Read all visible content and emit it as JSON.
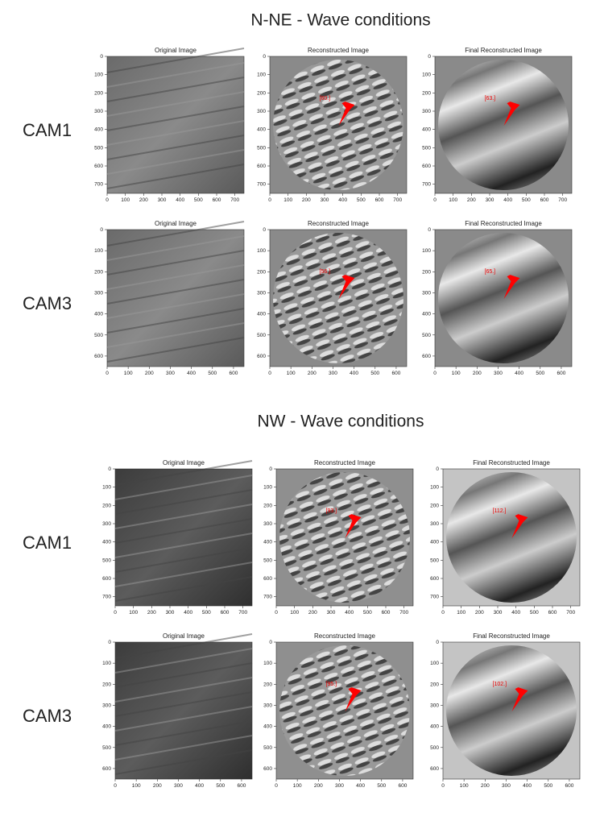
{
  "sections": [
    {
      "title": "N-NE - Wave conditions",
      "rows": [
        {
          "label": "CAM1",
          "panels": [
            {
              "title": "Original Image",
              "xticks": [
                0,
                100,
                200,
                300,
                400,
                500,
                600,
                700
              ],
              "yticks": [
                0,
                100,
                200,
                300,
                400,
                500,
                600,
                700
              ]
            },
            {
              "title": "Reconstructed Image",
              "annotation": "[60.]",
              "xticks": [
                0,
                100,
                200,
                300,
                400,
                500,
                600,
                700
              ],
              "yticks": [
                0,
                100,
                200,
                300,
                400,
                500,
                600,
                700
              ]
            },
            {
              "title": "Final Reconstructed Image",
              "annotation": "[63.]",
              "xticks": [
                0,
                100,
                200,
                300,
                400,
                500,
                600,
                700
              ],
              "yticks": [
                0,
                100,
                200,
                300,
                400,
                500,
                600,
                700
              ]
            }
          ]
        },
        {
          "label": "CAM3",
          "panels": [
            {
              "title": "Original Image",
              "xticks": [
                0,
                100,
                200,
                300,
                400,
                500,
                600
              ],
              "yticks": [
                0,
                100,
                200,
                300,
                400,
                500,
                600
              ]
            },
            {
              "title": "Reconstructed Image",
              "annotation": "[56.]",
              "xticks": [
                0,
                100,
                200,
                300,
                400,
                500,
                600
              ],
              "yticks": [
                0,
                100,
                200,
                300,
                400,
                500,
                600
              ]
            },
            {
              "title": "Final Reconstructed Image",
              "annotation": "[65.]",
              "xticks": [
                0,
                100,
                200,
                300,
                400,
                500,
                600
              ],
              "yticks": [
                0,
                100,
                200,
                300,
                400,
                500,
                600
              ]
            }
          ]
        }
      ]
    },
    {
      "title": "NW - Wave conditions",
      "rows": [
        {
          "label": "CAM1",
          "panels": [
            {
              "title": "Original Image",
              "xticks": [
                0,
                100,
                200,
                300,
                400,
                500,
                600,
                700
              ],
              "yticks": [
                0,
                100,
                200,
                300,
                400,
                500,
                600,
                700
              ]
            },
            {
              "title": "Reconstructed Image",
              "annotation": "[93.]",
              "xticks": [
                0,
                100,
                200,
                300,
                400,
                500,
                600,
                700
              ],
              "yticks": [
                0,
                100,
                200,
                300,
                400,
                500,
                600,
                700
              ]
            },
            {
              "title": "Final Reconstructed Image",
              "annotation": "[112.]",
              "xticks": [
                0,
                100,
                200,
                300,
                400,
                500,
                600,
                700
              ],
              "yticks": [
                0,
                100,
                200,
                300,
                400,
                500,
                600,
                700
              ]
            }
          ]
        },
        {
          "label": "CAM3",
          "panels": [
            {
              "title": "Original Image",
              "xticks": [
                0,
                100,
                200,
                300,
                400,
                500,
                600
              ],
              "yticks": [
                0,
                100,
                200,
                300,
                400,
                500,
                600
              ]
            },
            {
              "title": "Reconstructed Image",
              "annotation": "[95.]",
              "xticks": [
                0,
                100,
                200,
                300,
                400,
                500,
                600
              ],
              "yticks": [
                0,
                100,
                200,
                300,
                400,
                500,
                600
              ]
            },
            {
              "title": "Final Reconstructed Image",
              "annotation": "[102.]",
              "xticks": [
                0,
                100,
                200,
                300,
                400,
                500,
                600
              ],
              "yticks": [
                0,
                100,
                200,
                300,
                400,
                500,
                600
              ]
            }
          ]
        }
      ]
    }
  ]
}
